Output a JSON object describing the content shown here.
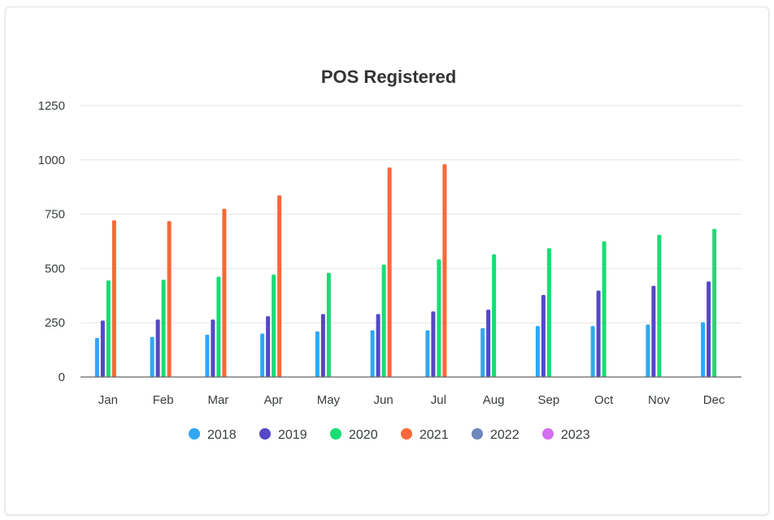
{
  "chart_data": {
    "type": "bar",
    "title": "POS Registered",
    "xlabel": "",
    "ylabel": "",
    "categories": [
      "Jan",
      "Feb",
      "Mar",
      "Apr",
      "May",
      "Jun",
      "Jul",
      "Aug",
      "Sep",
      "Oct",
      "Nov",
      "Dec"
    ],
    "ylim": [
      0,
      1250
    ],
    "yticks": [
      "0",
      "250",
      "500",
      "750",
      "1000",
      "1250"
    ],
    "grid": true,
    "legend_position": "bottom",
    "series": [
      {
        "name": "2018",
        "color": "#2ea8f5",
        "values": [
          180,
          185,
          195,
          200,
          210,
          215,
          215,
          225,
          235,
          235,
          242,
          252
        ]
      },
      {
        "name": "2019",
        "color": "#5547c7",
        "values": [
          260,
          265,
          265,
          280,
          290,
          290,
          302,
          310,
          378,
          398,
          420,
          440
        ]
      },
      {
        "name": "2020",
        "color": "#17dd74",
        "values": [
          445,
          448,
          462,
          472,
          480,
          518,
          542,
          565,
          593,
          625,
          655,
          682
        ]
      },
      {
        "name": "2021",
        "color": "#fa6838",
        "values": [
          722,
          718,
          775,
          837,
          null,
          965,
          980,
          null,
          null,
          null,
          null,
          null
        ]
      },
      {
        "name": "2022",
        "color": "#6d88ba",
        "values": [
          null,
          null,
          null,
          null,
          null,
          null,
          null,
          null,
          null,
          null,
          null,
          null
        ]
      },
      {
        "name": "2023",
        "color": "#d46ff0",
        "values": [
          null,
          null,
          null,
          null,
          null,
          null,
          null,
          null,
          null,
          null,
          null,
          null
        ]
      }
    ]
  }
}
